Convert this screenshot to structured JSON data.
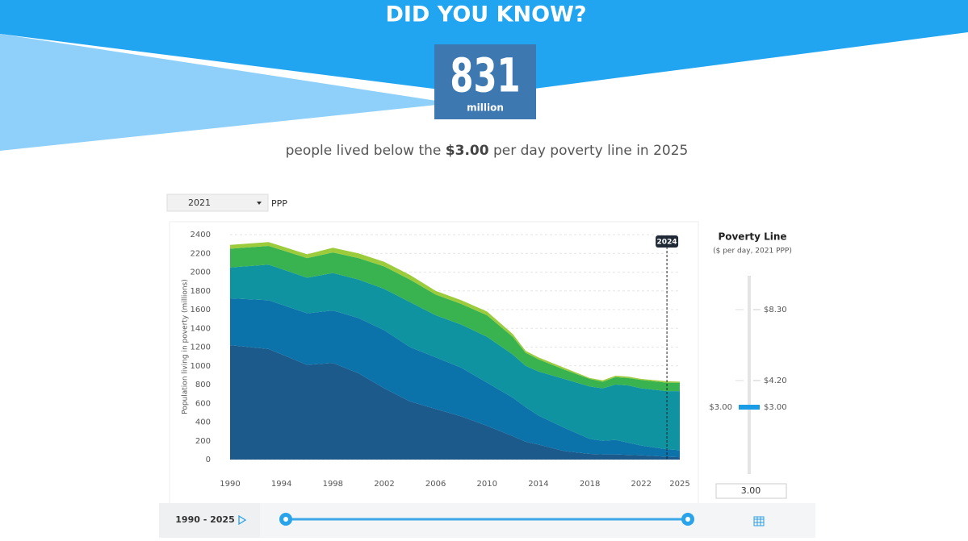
{
  "header": {
    "title": "DID YOU KNOW?",
    "number": "831",
    "unit": "million",
    "sentence_pre": "people lived below the ",
    "sentence_bold": "$3.00",
    "sentence_post": " per day poverty line in 2025"
  },
  "controls": {
    "ppp_year": "2021",
    "ppp_label": "PPP"
  },
  "chart_data": {
    "type": "area",
    "stacked": true,
    "ylabel": "Population living in poverty (millions)",
    "x": [
      1990,
      1993,
      1996,
      1998,
      2000,
      2002,
      2004,
      2006,
      2008,
      2010,
      2012,
      2013,
      2014,
      2016,
      2018,
      2019,
      2020,
      2021,
      2022,
      2024,
      2025
    ],
    "series": [
      {
        "color": "#1b5a8a",
        "values": [
          1220,
          1180,
          1010,
          1030,
          920,
          760,
          620,
          540,
          460,
          360,
          250,
          190,
          160,
          90,
          60,
          55,
          55,
          50,
          45,
          30,
          25
        ]
      },
      {
        "color": "#0b72aa",
        "values": [
          500,
          520,
          550,
          560,
          590,
          620,
          580,
          550,
          520,
          460,
          410,
          370,
          310,
          250,
          160,
          145,
          155,
          130,
          105,
          80,
          75
        ]
      },
      {
        "color": "#0f93a0",
        "values": [
          330,
          380,
          380,
          400,
          410,
          440,
          480,
          450,
          460,
          490,
          460,
          440,
          470,
          520,
          560,
          560,
          590,
          610,
          610,
          620,
          630
        ]
      },
      {
        "color": "#38b350",
        "values": [
          200,
          200,
          210,
          220,
          230,
          240,
          240,
          220,
          220,
          230,
          190,
          140,
          130,
          100,
          80,
          70,
          80,
          80,
          90,
          90,
          90
        ]
      },
      {
        "color": "#9ccb3b",
        "values": [
          40,
          40,
          40,
          50,
          50,
          50,
          50,
          40,
          40,
          40,
          30,
          20,
          20,
          20,
          10,
          15,
          15,
          15,
          10,
          15,
          11
        ]
      }
    ],
    "xlim": [
      1990,
      2025
    ],
    "xticks": [
      1990,
      1994,
      1998,
      2002,
      2006,
      2010,
      2014,
      2018,
      2022,
      2025
    ],
    "ylim": [
      0,
      2400
    ],
    "yticks": [
      0,
      200,
      400,
      600,
      800,
      1000,
      1200,
      1400,
      1600,
      1800,
      2000,
      2200,
      2400
    ],
    "grid": true,
    "marker_x": 2024
  },
  "poverty_line": {
    "title": "Poverty Line",
    "subtitle": "($ per day, 2021 PPP)",
    "ticks": [
      "$8.30",
      "$4.20",
      "$3.00"
    ],
    "current": "$3.00",
    "input": "3.00"
  },
  "timeline": {
    "range": "1990 - 2025"
  }
}
